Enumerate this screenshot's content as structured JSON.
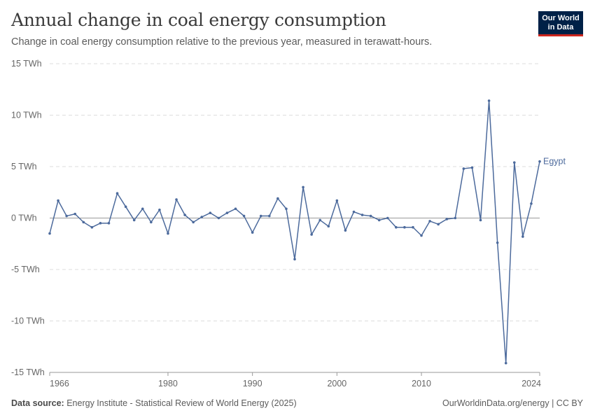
{
  "header": {
    "title": "Annual change in coal energy consumption",
    "subtitle": "Change in coal energy consumption relative to the previous year, measured in terawatt-hours.",
    "logo_line1": "Our World",
    "logo_line2": "in Data"
  },
  "footer": {
    "source_label": "Data source:",
    "source_text": "Energy Institute - Statistical Review of World Energy (2025)",
    "right_text": "OurWorldinData.org/energy | CC BY"
  },
  "colors": {
    "series": "#4c6a9c",
    "grid": "#dddddd",
    "zero_line": "#999999",
    "logo_bg": "#002147",
    "logo_accent": "#ce261e"
  },
  "chart_data": {
    "type": "line",
    "title": "Annual change in coal energy consumption",
    "y_unit": "TWh",
    "ylim": [
      -15,
      15
    ],
    "y_ticks": [
      -15,
      -10,
      -5,
      0,
      5,
      10,
      15
    ],
    "y_tick_labels": [
      "-15 TWh",
      "-10 TWh",
      "-5 TWh",
      "0 TWh",
      "5 TWh",
      "10 TWh",
      "15 TWh"
    ],
    "xlim": [
      1966,
      2024
    ],
    "x_ticks": [
      1966,
      1980,
      1990,
      2000,
      2010,
      2024
    ],
    "grid": "horizontal dashed",
    "legend": "inline label at line end",
    "series": [
      {
        "name": "Egypt",
        "x": [
          1966,
          1967,
          1968,
          1969,
          1970,
          1971,
          1972,
          1973,
          1974,
          1975,
          1976,
          1977,
          1978,
          1979,
          1980,
          1981,
          1982,
          1983,
          1984,
          1985,
          1986,
          1987,
          1988,
          1989,
          1990,
          1991,
          1992,
          1993,
          1994,
          1995,
          1996,
          1997,
          1998,
          1999,
          2000,
          2001,
          2002,
          2003,
          2004,
          2005,
          2006,
          2007,
          2008,
          2009,
          2010,
          2011,
          2012,
          2013,
          2014,
          2015,
          2016,
          2017,
          2018,
          2019,
          2020,
          2021,
          2022,
          2023,
          2024
        ],
        "y": [
          -1.5,
          1.7,
          0.2,
          0.4,
          -0.4,
          -0.9,
          -0.5,
          -0.5,
          2.4,
          1.1,
          -0.2,
          0.9,
          -0.4,
          0.8,
          -1.5,
          1.8,
          0.3,
          -0.4,
          0.1,
          0.5,
          0.0,
          0.5,
          0.9,
          0.2,
          -1.4,
          0.2,
          0.2,
          1.9,
          0.9,
          -4.0,
          3.0,
          -1.6,
          -0.2,
          -0.8,
          1.7,
          -1.2,
          0.6,
          0.3,
          0.2,
          -0.2,
          0.0,
          -0.9,
          -0.9,
          -0.9,
          -1.7,
          -0.3,
          -0.6,
          -0.1,
          0.0,
          4.8,
          4.9,
          -0.2,
          11.4,
          -2.4,
          -14.1,
          5.4,
          -1.8,
          1.4,
          5.5
        ]
      }
    ]
  }
}
